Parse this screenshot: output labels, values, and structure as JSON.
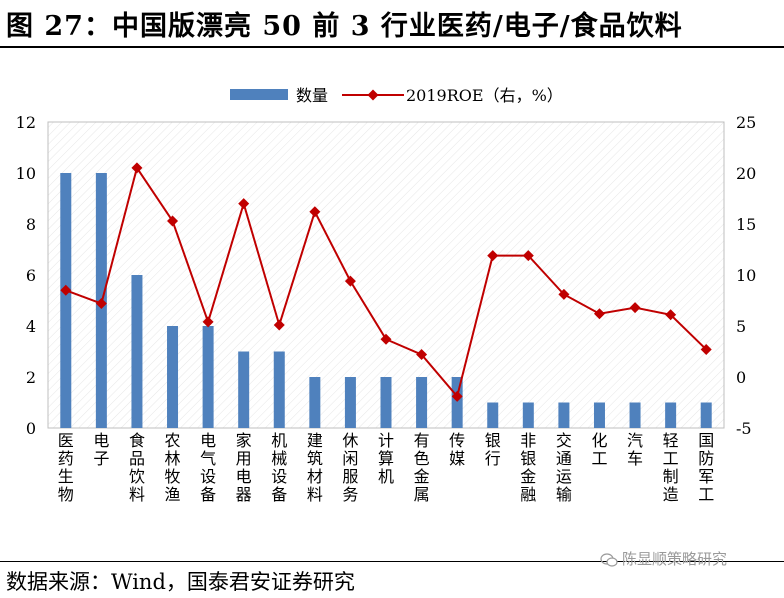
{
  "title": "图 27：中国版漂亮 50 前 3 行业医药/电子/食品饮料",
  "source": "数据来源：Wind，国泰君安证券研究",
  "watermark": "陈显顺策略研究",
  "chart_data": {
    "type": "bar+line",
    "categories": [
      "医药生物",
      "电子",
      "食品饮料",
      "农林牧渔",
      "电气设备",
      "家用电器",
      "机械设备",
      "建筑材料",
      "休闲服务",
      "计算机",
      "有色金属",
      "传媒",
      "银行",
      "非银金融",
      "交通运输",
      "化工",
      "汽车",
      "轻工制造",
      "国防军工"
    ],
    "series": [
      {
        "name": "数量",
        "axis": "left",
        "type": "bar",
        "color": "#4f81bd",
        "values": [
          10,
          10,
          6,
          4,
          4,
          3,
          3,
          2,
          2,
          2,
          2,
          2,
          1,
          1,
          1,
          1,
          1,
          1,
          1
        ]
      },
      {
        "name": "2019ROE（右，%）",
        "axis": "right",
        "type": "line",
        "color": "#c00000",
        "values": [
          8.5,
          7.2,
          20.5,
          15.3,
          5.4,
          17,
          5.1,
          16.2,
          9.4,
          3.7,
          2.2,
          -1.9,
          11.9,
          11.9,
          8.1,
          6.2,
          6.8,
          6.1,
          2.7
        ]
      }
    ],
    "y_left": {
      "min": 0,
      "max": 12,
      "ticks": [
        "0",
        "2",
        "4",
        "6",
        "8",
        "10",
        "12"
      ]
    },
    "y_right": {
      "min": -5,
      "max": 25,
      "ticks": [
        "-5",
        "0",
        "5",
        "10",
        "15",
        "20",
        "25"
      ]
    },
    "legend_position": "top-center",
    "grid": false
  }
}
